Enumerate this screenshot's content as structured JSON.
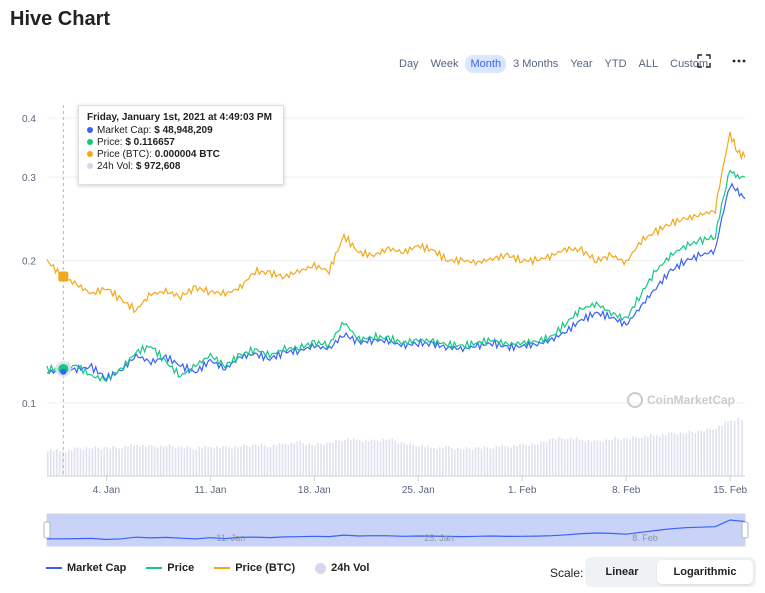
{
  "title": "Hive Chart",
  "ranges": [
    "Day",
    "Week",
    "Month",
    "3 Months",
    "Year",
    "YTD",
    "ALL",
    "Custom"
  ],
  "active_range": "Month",
  "icons": {
    "fullscreen": "expand-icon",
    "menu": "more-icon"
  },
  "tooltip": {
    "title": "Friday, January 1st, 2021 at 4:49:03 PM",
    "rows": [
      {
        "label": "Market Cap:",
        "value": "$ 48,948,209",
        "color": "#3861fb"
      },
      {
        "label": "Price:",
        "value": "$ 0.116657",
        "color": "#16c784"
      },
      {
        "label": "Price (BTC):",
        "value": "0.000004 BTC",
        "color": "#f3a81b"
      },
      {
        "label": "24h Vol:",
        "value": "$ 972,608",
        "color": "#d4d8ea"
      }
    ]
  },
  "watermark": "CoinMarketCap",
  "legend": [
    {
      "label": "Market Cap",
      "color": "#3861fb",
      "kind": "line"
    },
    {
      "label": "Price",
      "color": "#16c784",
      "kind": "line"
    },
    {
      "label": "Price (BTC)",
      "color": "#f3a81b",
      "kind": "line"
    },
    {
      "label": "24h Vol",
      "color": "#d4d8ea",
      "kind": "circle"
    }
  ],
  "scale": {
    "label": "Scale:",
    "options": [
      "Linear",
      "Logarithmic"
    ],
    "active": "Logarithmic"
  },
  "chart_data": {
    "type": "line",
    "y_scale": "log",
    "ylim": [
      0.07,
      0.42
    ],
    "yticks": [
      0.1,
      0.2,
      0.3,
      0.4
    ],
    "xticks": [
      {
        "label": "4. Jan",
        "day": 4
      },
      {
        "label": "11. Jan",
        "day": 11
      },
      {
        "label": "18. Jan",
        "day": 18
      },
      {
        "label": "25. Jan",
        "day": 25
      },
      {
        "label": "1. Feb",
        "day": 32
      },
      {
        "label": "8. Feb",
        "day": 39
      },
      {
        "label": "15. Feb",
        "day": 46
      }
    ],
    "navigator_ticks": [
      "11. Jan",
      "25. Jan",
      "8. Feb"
    ],
    "x_day": [
      0,
      1,
      2,
      3,
      4,
      5,
      6,
      7,
      8,
      9,
      10,
      11,
      12,
      13,
      14,
      15,
      16,
      17,
      18,
      19,
      20,
      21,
      22,
      23,
      24,
      25,
      26,
      27,
      28,
      29,
      30,
      31,
      32,
      33,
      34,
      35,
      36,
      37,
      38,
      39,
      40,
      41,
      42,
      43,
      44,
      45,
      46,
      46.5,
      47
    ],
    "series": [
      {
        "name": "Market Cap",
        "color": "#3861fb",
        "values": [
          0.116,
          0.117,
          0.118,
          0.119,
          0.113,
          0.117,
          0.126,
          0.122,
          0.125,
          0.12,
          0.116,
          0.123,
          0.118,
          0.125,
          0.127,
          0.124,
          0.128,
          0.129,
          0.132,
          0.13,
          0.14,
          0.134,
          0.136,
          0.135,
          0.132,
          0.134,
          0.133,
          0.131,
          0.13,
          0.132,
          0.134,
          0.131,
          0.132,
          0.133,
          0.136,
          0.142,
          0.15,
          0.155,
          0.152,
          0.146,
          0.16,
          0.175,
          0.19,
          0.2,
          0.205,
          0.21,
          0.29,
          0.28,
          0.27
        ]
      },
      {
        "name": "Price",
        "color": "#16c784",
        "values": [
          0.118,
          0.118,
          0.12,
          0.114,
          0.112,
          0.118,
          0.128,
          0.132,
          0.122,
          0.114,
          0.12,
          0.126,
          0.12,
          0.126,
          0.13,
          0.126,
          0.13,
          0.131,
          0.134,
          0.133,
          0.148,
          0.136,
          0.138,
          0.137,
          0.134,
          0.136,
          0.135,
          0.133,
          0.132,
          0.134,
          0.136,
          0.133,
          0.134,
          0.135,
          0.138,
          0.148,
          0.158,
          0.162,
          0.155,
          0.15,
          0.17,
          0.19,
          0.205,
          0.215,
          0.22,
          0.225,
          0.31,
          0.3,
          0.3
        ]
      },
      {
        "name": "Price (BTC)",
        "color": "#f3a81b",
        "values": [
          0.2,
          0.185,
          0.178,
          0.17,
          0.175,
          0.165,
          0.157,
          0.17,
          0.172,
          0.168,
          0.175,
          0.172,
          0.17,
          0.175,
          0.19,
          0.188,
          0.185,
          0.19,
          0.195,
          0.19,
          0.225,
          0.208,
          0.205,
          0.212,
          0.208,
          0.215,
          0.21,
          0.2,
          0.2,
          0.198,
          0.202,
          0.205,
          0.2,
          0.2,
          0.205,
          0.212,
          0.21,
          0.2,
          0.205,
          0.198,
          0.22,
          0.23,
          0.24,
          0.245,
          0.25,
          0.255,
          0.37,
          0.34,
          0.33
        ]
      }
    ],
    "volume_rel": [
      0.42,
      0.4,
      0.44,
      0.46,
      0.45,
      0.47,
      0.5,
      0.47,
      0.49,
      0.46,
      0.45,
      0.47,
      0.46,
      0.48,
      0.5,
      0.49,
      0.52,
      0.54,
      0.5,
      0.53,
      0.6,
      0.58,
      0.56,
      0.6,
      0.52,
      0.5,
      0.45,
      0.46,
      0.44,
      0.45,
      0.47,
      0.48,
      0.5,
      0.52,
      0.6,
      0.62,
      0.58,
      0.55,
      0.6,
      0.6,
      0.64,
      0.66,
      0.68,
      0.7,
      0.72,
      0.78,
      0.9,
      0.92,
      0.9
    ],
    "highlight_day": 1.1
  }
}
